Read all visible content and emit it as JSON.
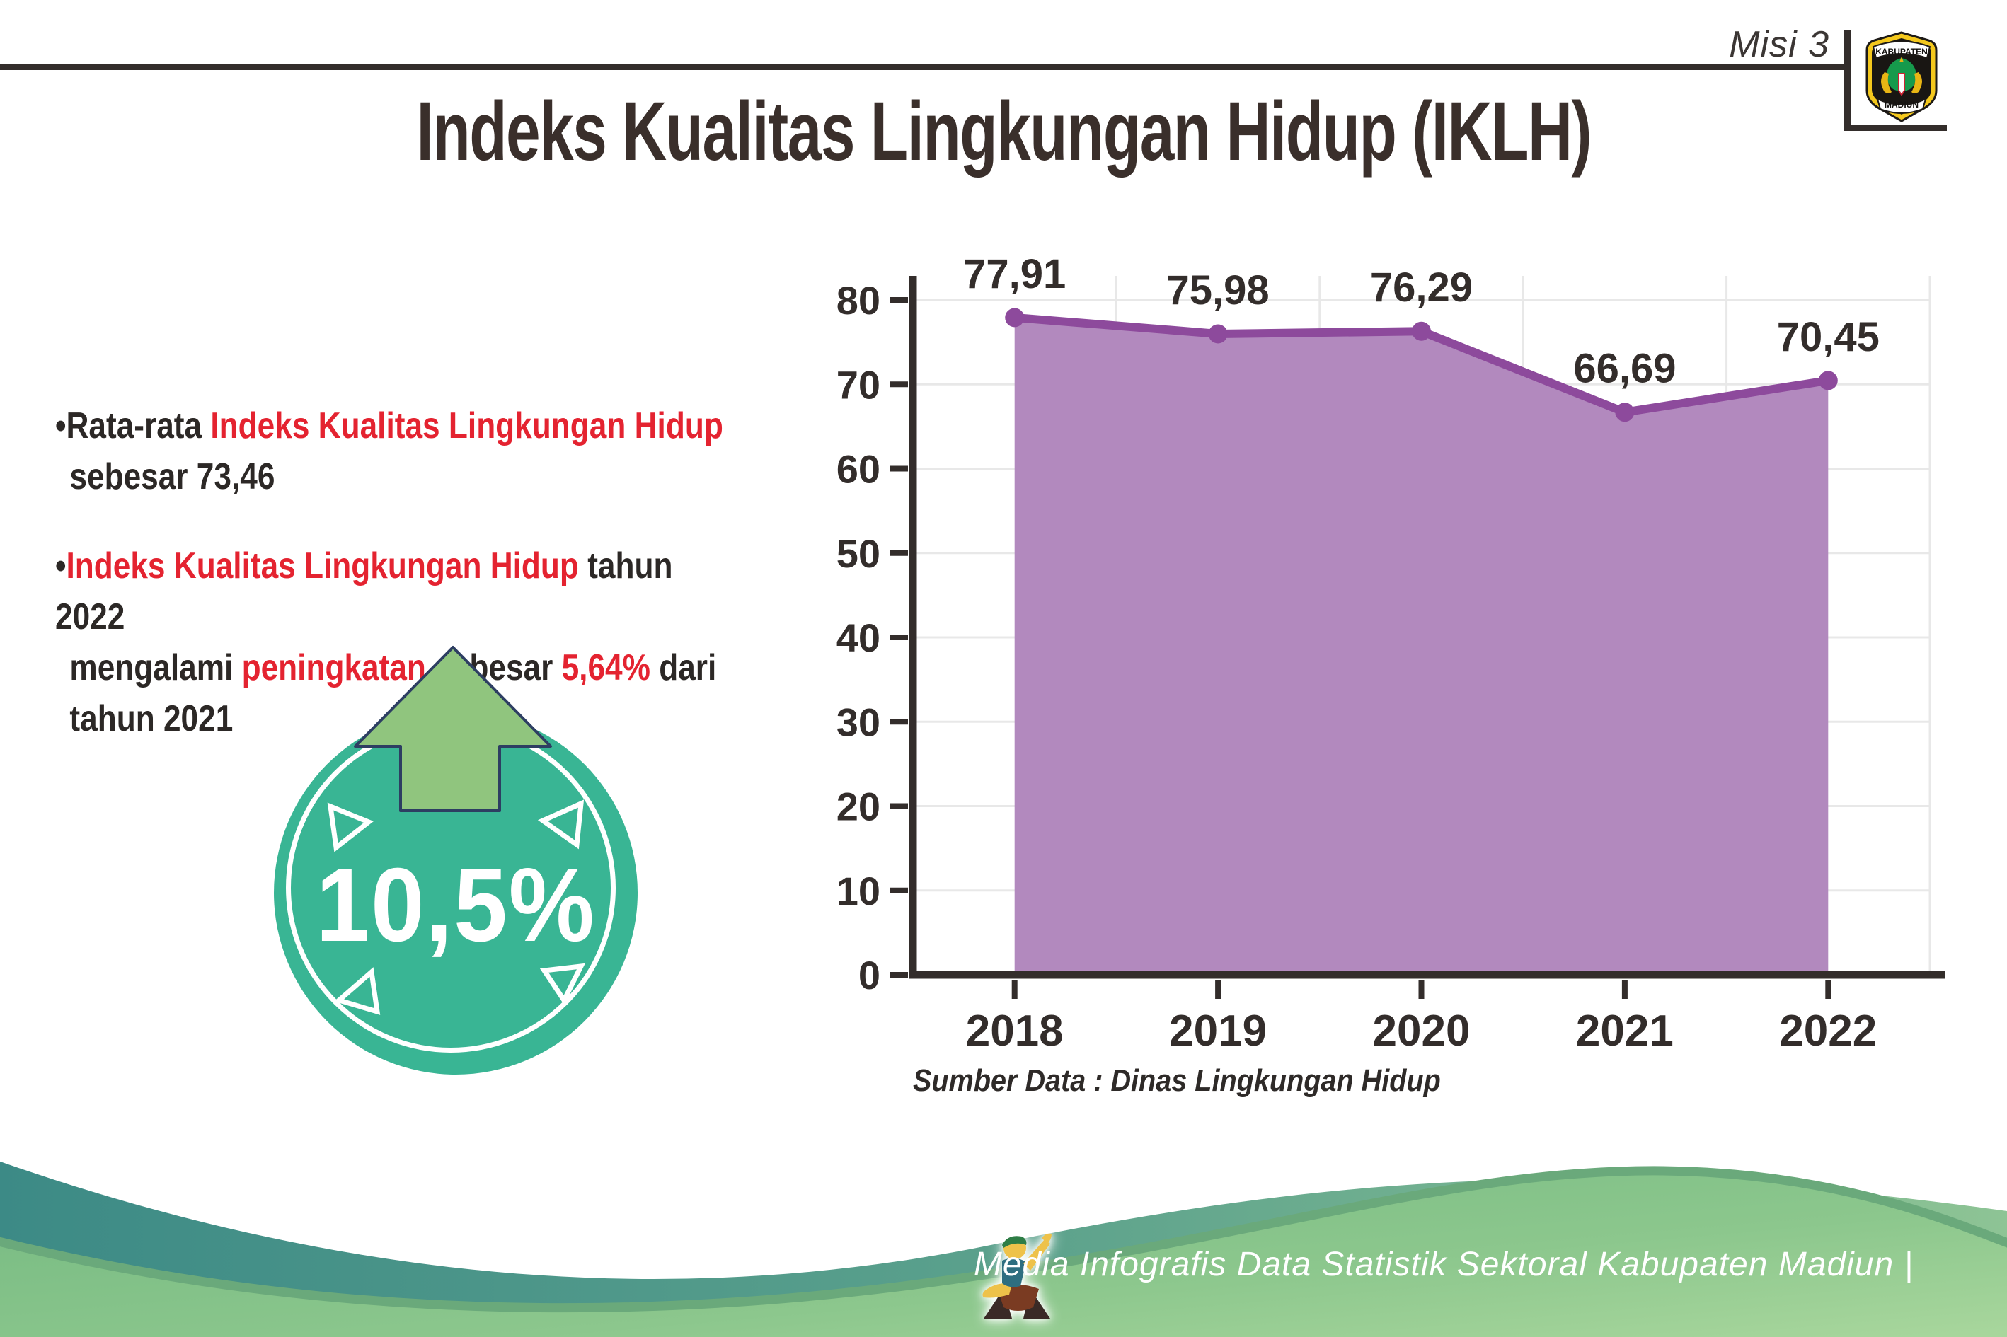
{
  "header": {
    "misi_label": "Misi 3",
    "title": "Indeks Kualitas Lingkungan Hidup (IKLH)"
  },
  "logo": {
    "top_text": "KABUPATEN",
    "bottom_text": "MADIUN"
  },
  "bullets": {
    "bullet_char": "•",
    "b1_l1_dark": "Rata-rata ",
    "b1_l1_red": "Indeks Kualitas Lingkungan Hidup",
    "b1_l2_dark": "sebesar 73,46",
    "b2_l1_red": "Indeks Kualitas Lingkungan Hidup",
    "b2_l1_dark": " tahun 2022",
    "b2_l2_d1": "mengalami ",
    "b2_l2_r1": "peningkatan",
    "b2_l2_d2": " sebesar ",
    "b2_l2_r2": "5,64%",
    "b2_l2_d3": " dari",
    "b2_l3_dark": "tahun 2021"
  },
  "badge": {
    "value": "10,5%"
  },
  "chart_data": {
    "type": "area",
    "categories": [
      "2018",
      "2019",
      "2020",
      "2021",
      "2022"
    ],
    "values": [
      77.91,
      75.98,
      76.29,
      66.69,
      70.45
    ],
    "value_labels": [
      "77,91",
      "75,98",
      "76,29",
      "66,69",
      "70,45"
    ],
    "title": "",
    "xlabel": "",
    "ylabel": "",
    "ylim": [
      0,
      80
    ],
    "ytick_step": 10,
    "grid": true,
    "legend_position": "none",
    "colors": {
      "area_fill": "#b289be",
      "line": "#8d4a9c",
      "marker": "#8d4a9c",
      "axis": "#332d2b",
      "grid": "#e8e8e8",
      "label": "#332d2b"
    }
  },
  "source_note": "Sumber Data : Dinas Lingkungan Hidup",
  "footer": {
    "text": "Media Infografis Data Statistik Sektoral Kabupaten Madiun |"
  },
  "colors": {
    "accent_red": "#e42330",
    "badge_teal": "#39b594",
    "badge_arrow_green": "#90c57e",
    "wave_teal": "#3c8a86",
    "wave_green": "#8ec495",
    "hill_green": "#74b981"
  }
}
